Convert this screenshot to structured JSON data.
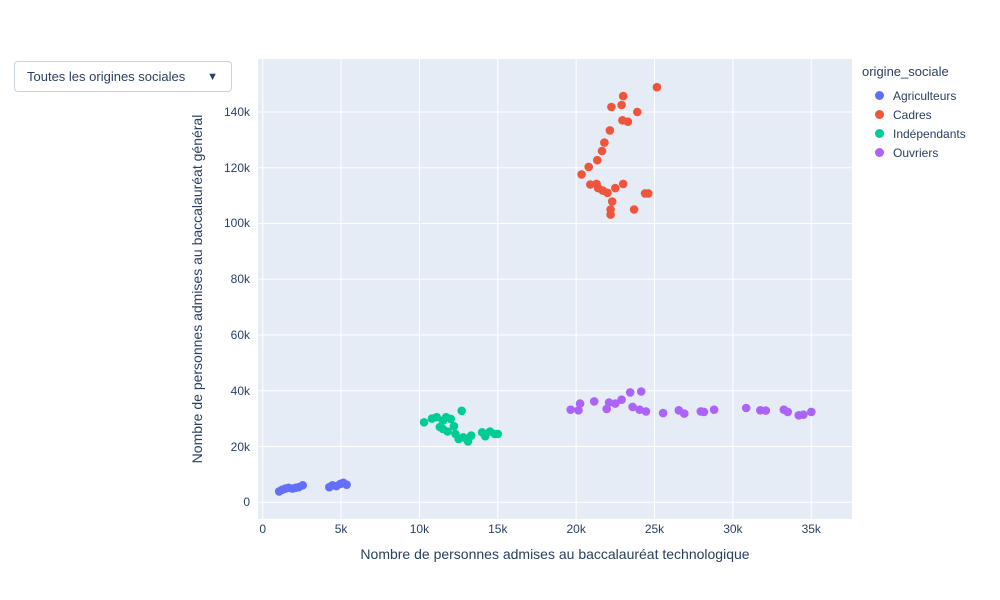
{
  "dropdown": {
    "value": "Toutes les origines sociales",
    "arrow": "▼"
  },
  "colors": {
    "plot_background": "#e5ecf6",
    "grid": "#ffffff",
    "text": "#2a3f5f",
    "agriculteurs": "#636efa",
    "cadres": "#ef553b",
    "independants": "#00cc96",
    "ouvriers": "#ab63fa"
  },
  "chart_data": {
    "type": "scatter",
    "title": "",
    "xlabel": "Nombre de personnes admises au baccalauréat technologique",
    "ylabel": "Nombre de personnes admises au baccalauréat général",
    "legend_title": "origine_sociale",
    "x_range": [
      -300,
      37600
    ],
    "y_range": [
      -6000,
      159000
    ],
    "grid": true,
    "legend_position": "right",
    "marker_radius": 4.3,
    "x_ticks": [
      {
        "value": 0,
        "label": "0"
      },
      {
        "value": 5000,
        "label": "5k"
      },
      {
        "value": 10000,
        "label": "10k"
      },
      {
        "value": 15000,
        "label": "15k"
      },
      {
        "value": 20000,
        "label": "20k"
      },
      {
        "value": 25000,
        "label": "25k"
      },
      {
        "value": 30000,
        "label": "30k"
      },
      {
        "value": 35000,
        "label": "35k"
      }
    ],
    "y_ticks": [
      {
        "value": 0,
        "label": "0"
      },
      {
        "value": 20000,
        "label": "20k"
      },
      {
        "value": 40000,
        "label": "40k"
      },
      {
        "value": 60000,
        "label": "60k"
      },
      {
        "value": 80000,
        "label": "80k"
      },
      {
        "value": 100000,
        "label": "100k"
      },
      {
        "value": 120000,
        "label": "120k"
      },
      {
        "value": 140000,
        "label": "140k"
      }
    ],
    "series": [
      {
        "name": "Agriculteurs",
        "color": "#636efa",
        "points": [
          [
            1050,
            3900
          ],
          [
            1250,
            4500
          ],
          [
            1450,
            4900
          ],
          [
            1650,
            5200
          ],
          [
            1900,
            4900
          ],
          [
            2100,
            5200
          ],
          [
            2300,
            5400
          ],
          [
            2550,
            6100
          ],
          [
            4250,
            5400
          ],
          [
            4450,
            6100
          ],
          [
            4700,
            5800
          ],
          [
            4950,
            6600
          ],
          [
            5150,
            7000
          ],
          [
            5350,
            6300
          ]
        ]
      },
      {
        "name": "Cadres",
        "color": "#ef553b",
        "points": [
          [
            25150,
            148900
          ],
          [
            23000,
            145700
          ],
          [
            22250,
            141800
          ],
          [
            22900,
            142500
          ],
          [
            23900,
            140000
          ],
          [
            22950,
            137000
          ],
          [
            23300,
            136500
          ],
          [
            22150,
            133400
          ],
          [
            21800,
            129000
          ],
          [
            21650,
            126000
          ],
          [
            21350,
            122700
          ],
          [
            20800,
            120300
          ],
          [
            20350,
            117600
          ],
          [
            20900,
            114000
          ],
          [
            21300,
            114200
          ],
          [
            21400,
            112700
          ],
          [
            21700,
            111800
          ],
          [
            22000,
            111000
          ],
          [
            22500,
            112700
          ],
          [
            23000,
            114200
          ],
          [
            22300,
            107900
          ],
          [
            22200,
            105000
          ],
          [
            22200,
            103200
          ],
          [
            23700,
            105000
          ],
          [
            24400,
            110800
          ],
          [
            24600,
            110800
          ]
        ]
      },
      {
        "name": "Indépendants",
        "color": "#00cc96",
        "points": [
          [
            10300,
            28700
          ],
          [
            10800,
            30000
          ],
          [
            11100,
            30500
          ],
          [
            11500,
            29300
          ],
          [
            11700,
            30500
          ],
          [
            12000,
            29900
          ],
          [
            12700,
            32800
          ],
          [
            11300,
            27000
          ],
          [
            11500,
            26300
          ],
          [
            11800,
            25400
          ],
          [
            12200,
            27300
          ],
          [
            12300,
            24500
          ],
          [
            12500,
            22700
          ],
          [
            12800,
            23300
          ],
          [
            13100,
            21800
          ],
          [
            13300,
            23900
          ],
          [
            14000,
            25100
          ],
          [
            14200,
            23700
          ],
          [
            14500,
            25400
          ],
          [
            14800,
            24500
          ],
          [
            15000,
            24500
          ]
        ]
      },
      {
        "name": "Ouvriers",
        "color": "#ab63fa",
        "points": [
          [
            19650,
            33200
          ],
          [
            20150,
            33000
          ],
          [
            20250,
            35400
          ],
          [
            21150,
            36200
          ],
          [
            21950,
            33500
          ],
          [
            22100,
            35800
          ],
          [
            22500,
            35400
          ],
          [
            22900,
            36800
          ],
          [
            23450,
            39400
          ],
          [
            23600,
            34200
          ],
          [
            24150,
            39750
          ],
          [
            24050,
            33200
          ],
          [
            24450,
            32600
          ],
          [
            25550,
            32000
          ],
          [
            26550,
            33000
          ],
          [
            26900,
            31800
          ],
          [
            27950,
            32600
          ],
          [
            28150,
            32400
          ],
          [
            28800,
            33200
          ],
          [
            30850,
            33800
          ],
          [
            31750,
            33000
          ],
          [
            32100,
            32900
          ],
          [
            33250,
            33200
          ],
          [
            33500,
            32400
          ],
          [
            34200,
            31200
          ],
          [
            34500,
            31400
          ],
          [
            35000,
            32400
          ]
        ]
      }
    ]
  }
}
